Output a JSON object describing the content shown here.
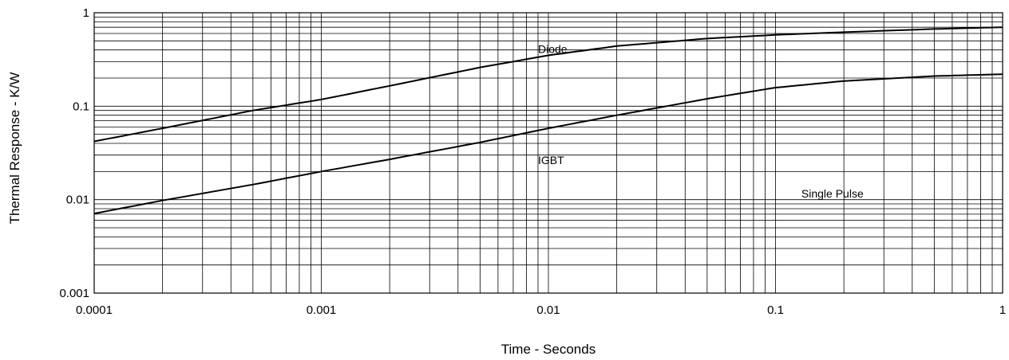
{
  "chart_data": {
    "type": "line",
    "title": "",
    "xlabel": "Time - Seconds",
    "ylabel": "Thermal Response - K/W",
    "xscale": "log",
    "yscale": "log",
    "xlim": [
      0.0001,
      1
    ],
    "ylim": [
      0.001,
      1
    ],
    "grid": true,
    "x_ticks": [
      "0.0001",
      "0.001",
      "0.01",
      "0.1",
      "1"
    ],
    "y_ticks": [
      "0.001",
      "0.01",
      "0.1",
      "1"
    ],
    "series": [
      {
        "name": "Diode",
        "x": [
          0.0001,
          0.0002,
          0.0005,
          0.001,
          0.002,
          0.005,
          0.01,
          0.02,
          0.05,
          0.1,
          0.2,
          0.5,
          1
        ],
        "y": [
          0.042,
          0.058,
          0.09,
          0.118,
          0.165,
          0.26,
          0.35,
          0.44,
          0.53,
          0.58,
          0.62,
          0.67,
          0.7
        ]
      },
      {
        "name": "IGBT",
        "x": [
          0.0001,
          0.0002,
          0.0005,
          0.001,
          0.002,
          0.005,
          0.01,
          0.02,
          0.05,
          0.1,
          0.2,
          0.5,
          1
        ],
        "y": [
          0.0071,
          0.0098,
          0.0145,
          0.02,
          0.027,
          0.041,
          0.058,
          0.08,
          0.12,
          0.158,
          0.186,
          0.21,
          0.22
        ]
      }
    ],
    "annotations": [
      {
        "text": "Diode",
        "x": 0.009,
        "y": 0.37
      },
      {
        "text": "IGBT",
        "x": 0.009,
        "y": 0.024
      },
      {
        "text": "Single Pulse",
        "x": 0.13,
        "y": 0.0105
      }
    ]
  }
}
